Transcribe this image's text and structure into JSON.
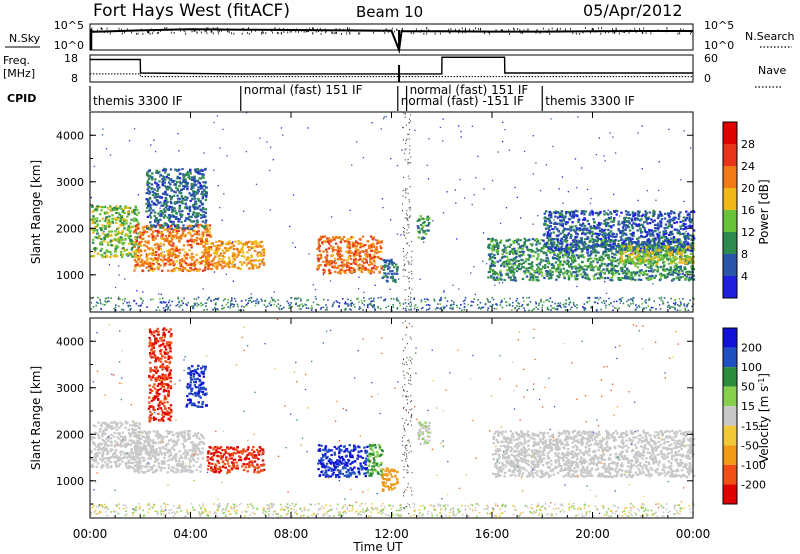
{
  "header": {
    "title": "Fort Hays West (fitACF)",
    "beam": "Beam 10",
    "date": "05/Apr/2012"
  },
  "panel_labels": {
    "nsky": "N.Sky",
    "freq_line1": "Freq.",
    "freq_line2": "[MHz]",
    "cpid": "CPID",
    "nsearch": "N.Search",
    "nave": "Nave"
  },
  "nsky_axis": {
    "top": "10^5",
    "bottom": "10^0"
  },
  "freq_axis": {
    "top": "18",
    "bottom": "8"
  },
  "nave_axis": {
    "top": "60",
    "bottom": "0"
  },
  "cpid_segments": [
    {
      "label": "themis 3300 IF",
      "start_h": 0.0,
      "end_h": 6.0
    },
    {
      "label": "normal (fast) 151 IF",
      "start_h": 6.0,
      "end_h": 12.25
    },
    {
      "label": "normal (fast) -151 IF",
      "start_h": 12.25,
      "end_h": 12.6
    },
    {
      "label": "normal (fast) 151 IF",
      "start_h": 12.6,
      "end_h": 18.0
    },
    {
      "label": "themis 3300 IF",
      "start_h": 18.0,
      "end_h": 24.0
    }
  ],
  "x_axis": {
    "label": "Time UT",
    "ticks": [
      "00:00",
      "04:00",
      "08:00",
      "12:00",
      "16:00",
      "20:00",
      "00:00"
    ]
  },
  "colors": {
    "power": [
      "#1f1fe0",
      "#2a55a8",
      "#2f8a4f",
      "#68c23a",
      "#f0b818",
      "#f07a18",
      "#e83418",
      "#e00000"
    ],
    "velocity": [
      "#e00000",
      "#f05018",
      "#f09a18",
      "#f0c838",
      "#c8c8c8",
      "#86d04e",
      "#2d8c3c",
      "#2050c0",
      "#1010d8"
    ],
    "line": "#000000"
  },
  "chart_data": [
    {
      "type": "line",
      "title": "N.Sky / N.Search",
      "x": [
        0,
        2,
        4,
        6,
        8,
        10,
        12,
        12.3,
        12.4,
        14,
        16,
        18,
        20,
        22,
        24
      ],
      "series": [
        {
          "name": "N.Sky",
          "values": [
            3000,
            6000,
            10000,
            8000,
            7000,
            6000,
            5000,
            1,
            4000,
            4000,
            3500,
            3500,
            4000,
            4500,
            4500
          ]
        }
      ],
      "ylim": [
        1,
        100000
      ],
      "ylog": true
    },
    {
      "type": "line",
      "title": "Freq. / Nave",
      "x": [
        0,
        2,
        2.01,
        6,
        12,
        14,
        14.01,
        16.5,
        16.51,
        24
      ],
      "series": [
        {
          "name": "Freq.",
          "values": [
            11,
            11,
            10,
            10,
            10,
            10,
            10,
            10,
            10,
            10
          ]
        },
        {
          "name": "Nave",
          "values": [
            50,
            50,
            20,
            18,
            18,
            18,
            55,
            55,
            20,
            20
          ]
        }
      ],
      "ylim_freq": [
        8,
        18
      ],
      "ylim_nave": [
        0,
        60
      ]
    },
    {
      "type": "heatmap",
      "title": "Power",
      "ylabel": "Slant Range [km]",
      "xlabel": "Time UT",
      "xlim": [
        0,
        24
      ],
      "ylim": [
        200,
        4500
      ],
      "yticks": [
        1000,
        2000,
        3000,
        4000
      ],
      "colorbar": {
        "label": "Power [dB]",
        "ticks": [
          4,
          8,
          12,
          16,
          20,
          24,
          28
        ],
        "range": [
          0,
          32
        ]
      },
      "regions": [
        {
          "t0": 0.0,
          "t1": 1.9,
          "r0": 1400,
          "r1": 2500,
          "value": 14
        },
        {
          "t0": 1.7,
          "t1": 4.8,
          "r0": 1100,
          "r1": 2100,
          "value": 22
        },
        {
          "t0": 2.2,
          "t1": 4.6,
          "r0": 2000,
          "r1": 3300,
          "value": 7
        },
        {
          "t0": 4.5,
          "t1": 6.9,
          "r0": 1150,
          "r1": 1750,
          "value": 20
        },
        {
          "t0": 9.0,
          "t1": 11.6,
          "r0": 1050,
          "r1": 1850,
          "value": 23
        },
        {
          "t0": 11.6,
          "t1": 12.2,
          "r0": 850,
          "r1": 1350,
          "value": 8
        },
        {
          "t0": 13.0,
          "t1": 13.5,
          "r0": 1800,
          "r1": 2300,
          "value": 10
        },
        {
          "t0": 15.8,
          "t1": 24.0,
          "r0": 900,
          "r1": 1800,
          "value": 10
        },
        {
          "t0": 18.0,
          "t1": 24.0,
          "r0": 1500,
          "r1": 2400,
          "value": 6
        },
        {
          "t0": 21.0,
          "t1": 24.0,
          "r0": 1250,
          "r1": 1650,
          "value": 16
        }
      ]
    },
    {
      "type": "heatmap",
      "title": "Velocity",
      "ylabel": "Slant Range [km]",
      "xlabel": "Time UT",
      "xlim": [
        0,
        24
      ],
      "ylim": [
        200,
        4500
      ],
      "yticks": [
        1000,
        2000,
        3000,
        4000
      ],
      "colorbar": {
        "label": "Velocity [m s^-1]",
        "ticks": [
          200,
          100,
          50,
          15,
          -15,
          -50,
          -100,
          -200
        ]
      },
      "regions": [
        {
          "t0": 0.0,
          "t1": 2.0,
          "r0": 1300,
          "r1": 2300,
          "value": 0
        },
        {
          "t0": 1.7,
          "t1": 4.5,
          "r0": 1200,
          "r1": 2100,
          "value": 0
        },
        {
          "t0": 2.3,
          "t1": 3.2,
          "r0": 2300,
          "r1": 4300,
          "value": -200
        },
        {
          "t0": 3.8,
          "t1": 4.6,
          "r0": 2600,
          "r1": 3500,
          "value": 200
        },
        {
          "t0": 4.6,
          "t1": 6.9,
          "r0": 1200,
          "r1": 1750,
          "value": -200
        },
        {
          "t0": 9.0,
          "t1": 11.0,
          "r0": 1100,
          "r1": 1800,
          "value": 200
        },
        {
          "t0": 11.0,
          "t1": 11.6,
          "r0": 1100,
          "r1": 1800,
          "value": 50
        },
        {
          "t0": 11.6,
          "t1": 12.2,
          "r0": 800,
          "r1": 1300,
          "value": -80
        },
        {
          "t0": 13.0,
          "t1": 13.5,
          "r0": 1800,
          "r1": 2300,
          "value": 10
        },
        {
          "t0": 16.0,
          "t1": 24.0,
          "r0": 1100,
          "r1": 2100,
          "value": 0
        }
      ]
    }
  ]
}
